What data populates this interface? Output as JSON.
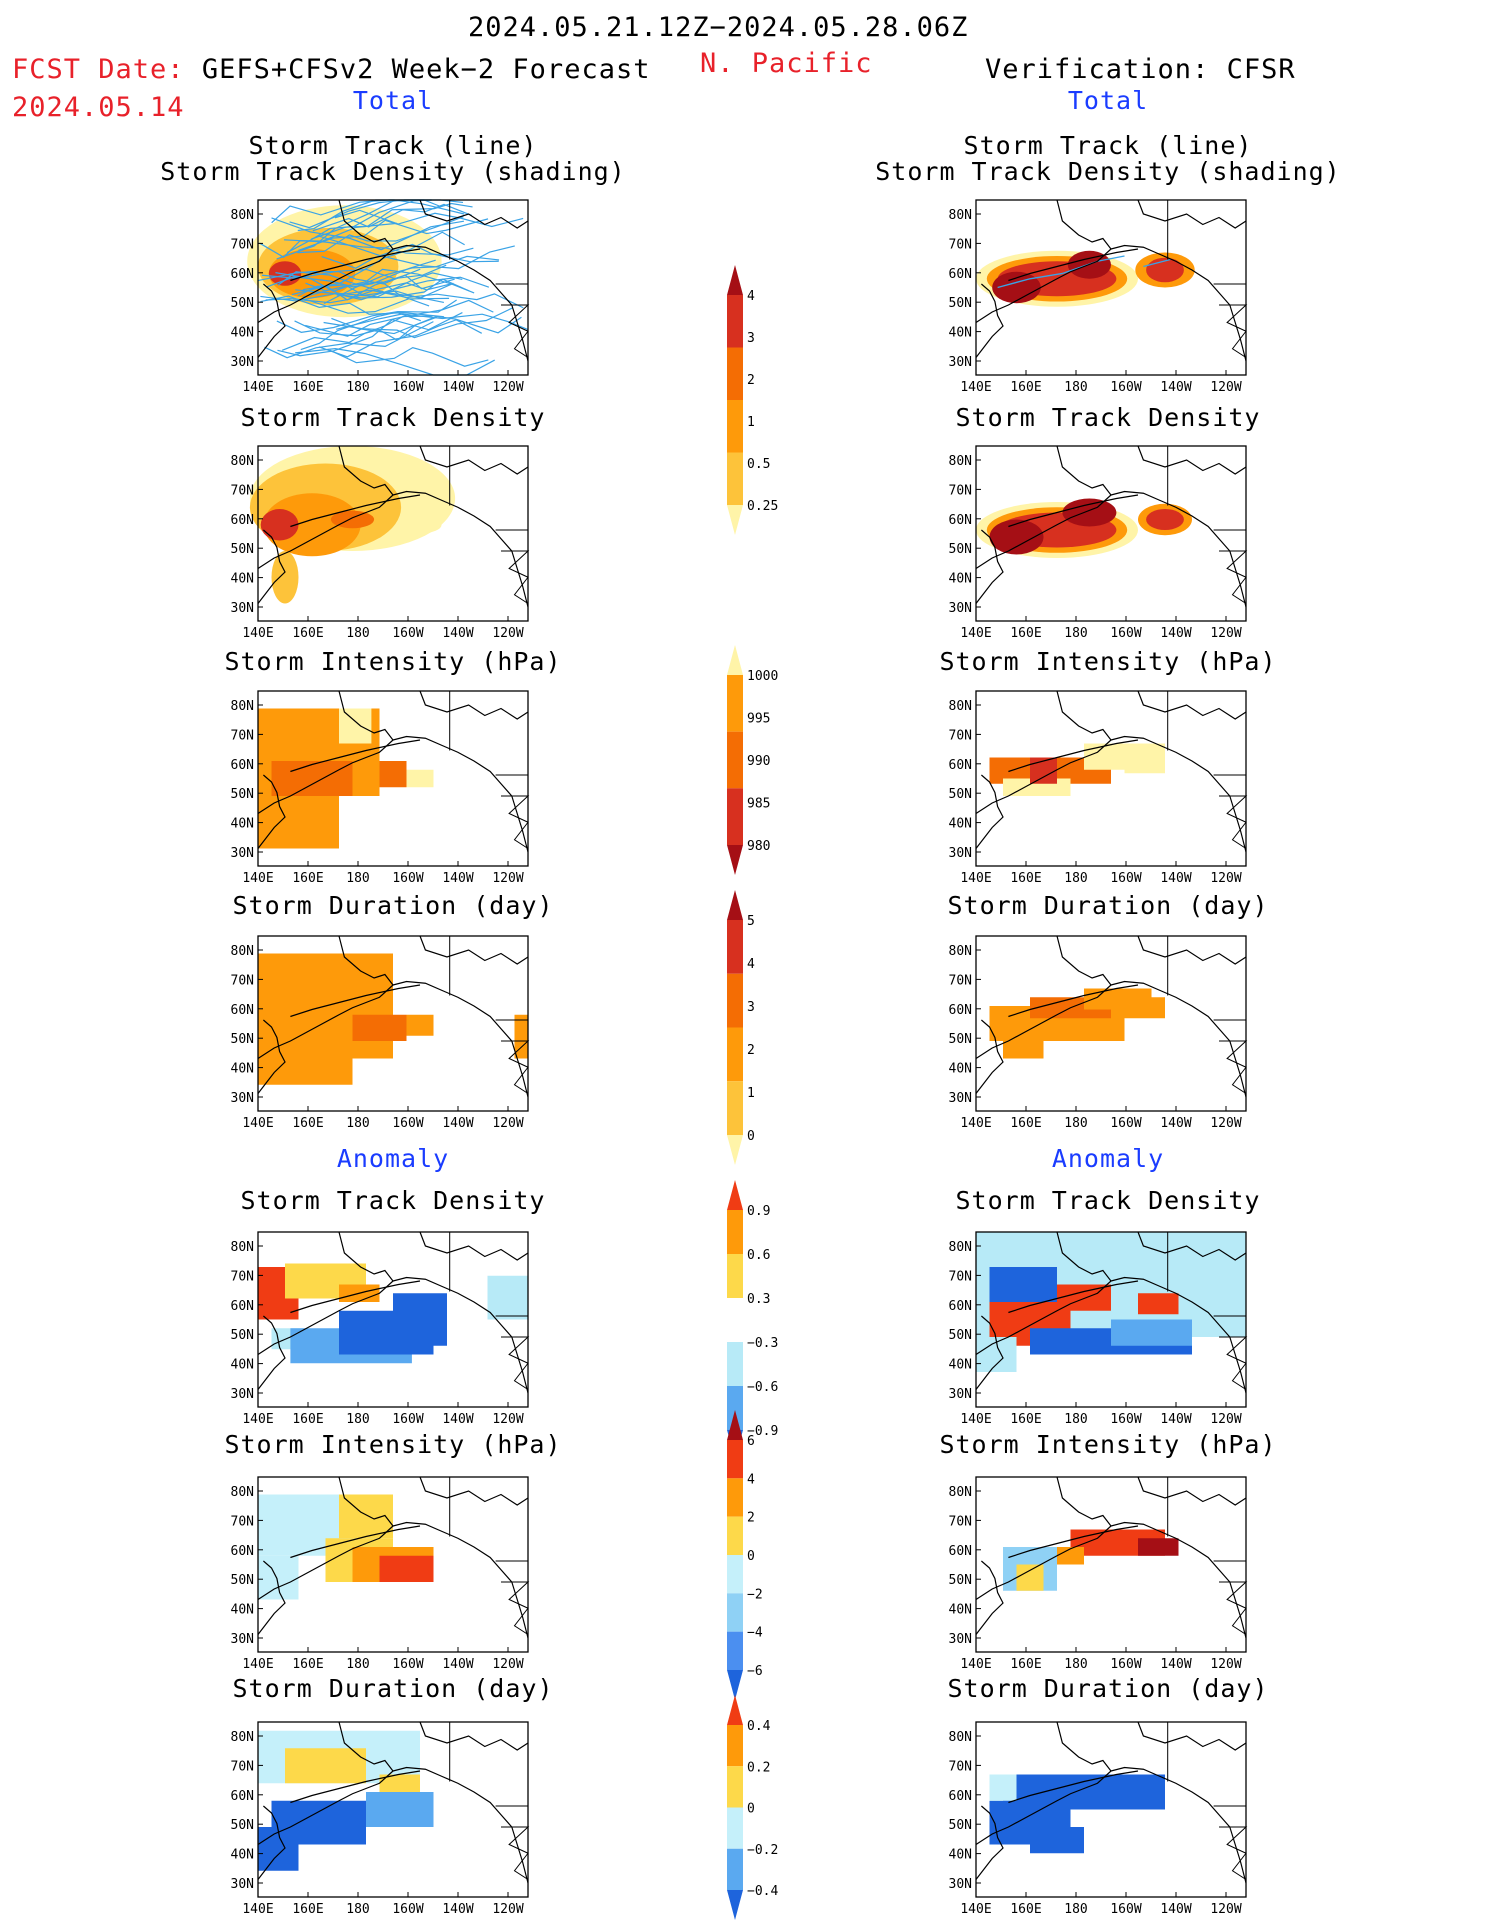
{
  "header": {
    "period": "2024.05.21.12Z−2024.05.28.06Z",
    "fcst_label": "FCST Date:",
    "fcst_model": "GEFS+CFSv2 Week−2 Forecast",
    "fcst_date": "2024.05.14",
    "region": "N. Pacific",
    "verification": "Verification: CFSR"
  },
  "sections": {
    "total": "Total",
    "anomaly": "Anomaly"
  },
  "panel_titles": {
    "track_line": "Storm Track (line)",
    "track_shading": "Storm Track Density (shading)",
    "density": "Storm Track Density",
    "intensity": "Storm Intensity (hPa)",
    "duration": "Storm Duration (day)"
  },
  "axes": {
    "lat_labels": [
      "80N",
      "70N",
      "60N",
      "50N",
      "40N",
      "30N"
    ],
    "lon_labels": [
      "140E",
      "160E",
      "180",
      "160W",
      "140W",
      "120W"
    ]
  },
  "colorbars": [
    {
      "id": "total-density",
      "labels": [
        "4",
        "3",
        "2",
        "1",
        "0.5",
        "0.25"
      ],
      "colors": [
        "#a50f15",
        "#d7301f",
        "#f46d04",
        "#fe9a0a",
        "#fdc33a",
        "#fff4a8"
      ]
    },
    {
      "id": "total-intensity",
      "labels": [
        "1000",
        "995",
        "990",
        "985",
        "980"
      ],
      "colors": [
        "#fff4a8",
        "#fe9a0a",
        "#f46d04",
        "#d7301f",
        "#a50f15"
      ]
    },
    {
      "id": "total-duration",
      "labels": [
        "5",
        "4",
        "3",
        "2",
        "1",
        "0"
      ],
      "colors": [
        "#a50f15",
        "#d7301f",
        "#f46d04",
        "#fe9a0a",
        "#fdc33a",
        "#fff4a8"
      ]
    },
    {
      "id": "anom-density",
      "labels": [
        "0.9",
        "0.6",
        "0.3",
        "−0.3",
        "−0.6",
        "−0.9"
      ],
      "colors": [
        "#f03c14",
        "#fe9a0a",
        "#fdd94a",
        "#ffffff",
        "#b7eaf7",
        "#5aa9f0",
        "#1e64dc"
      ]
    },
    {
      "id": "anom-intensity",
      "labels": [
        "6",
        "4",
        "2",
        "0",
        "−2",
        "−4",
        "−6"
      ],
      "colors": [
        "#a50f15",
        "#f03c14",
        "#fe9a0a",
        "#fdd94a",
        "#c5f0fa",
        "#8fd1f5",
        "#4b8ff0",
        "#1e64dc"
      ]
    },
    {
      "id": "anom-duration",
      "labels": [
        "0.4",
        "0.2",
        "0",
        "−0.2",
        "−0.4"
      ],
      "colors": [
        "#f03c14",
        "#fe9a0a",
        "#fdd94a",
        "#c5f0fa",
        "#5aa9f0",
        "#1e64dc"
      ]
    }
  ],
  "colors": {
    "title_red": "#e8212a",
    "section_blue": "#1a3cff",
    "track_line": "#3aa3e6"
  }
}
